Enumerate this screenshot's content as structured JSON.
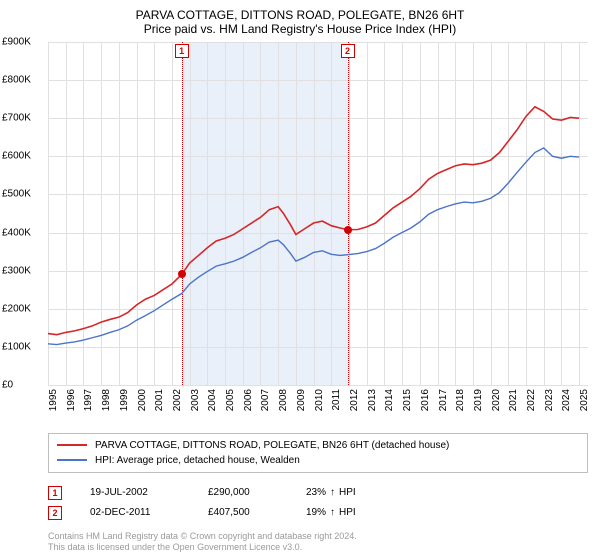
{
  "chart": {
    "title": "PARVA COTTAGE, DITTONS ROAD, POLEGATE, BN26 6HT",
    "subtitle": "Price paid vs. HM Land Registry's House Price Index (HPI)",
    "type": "line",
    "background_color": "#ffffff",
    "grid_color": "#e0e0e0",
    "shade_color": "#eaf0fa",
    "axis_font_size": 10,
    "title_font_size": 12,
    "x": {
      "min": 1995,
      "max": 2025.5,
      "ticks": [
        1995,
        1996,
        1997,
        1998,
        1999,
        2000,
        2001,
        2002,
        2003,
        2004,
        2005,
        2006,
        2007,
        2008,
        2009,
        2010,
        2011,
        2012,
        2013,
        2014,
        2015,
        2016,
        2017,
        2018,
        2019,
        2020,
        2021,
        2022,
        2023,
        2024,
        2025
      ],
      "tick_labels": [
        "1995",
        "1996",
        "1997",
        "1998",
        "1999",
        "2000",
        "2001",
        "2002",
        "2003",
        "2004",
        "2005",
        "2006",
        "2007",
        "2008",
        "2009",
        "2010",
        "2011",
        "2012",
        "2013",
        "2014",
        "2015",
        "2016",
        "2017",
        "2018",
        "2019",
        "2020",
        "2021",
        "2022",
        "2023",
        "2024",
        "2025"
      ]
    },
    "y": {
      "min": 0,
      "max": 900000,
      "ticks": [
        0,
        100000,
        200000,
        300000,
        400000,
        500000,
        600000,
        700000,
        800000,
        900000
      ],
      "tick_labels": [
        "£0",
        "£100K",
        "£200K",
        "£300K",
        "£400K",
        "£500K",
        "£600K",
        "£700K",
        "£800K",
        "£900K"
      ]
    },
    "series": [
      {
        "name": "PARVA COTTAGE, DITTONS ROAD, POLEGATE, BN26 6HT (detached house)",
        "color": "#d62728",
        "line_width": 1.6,
        "data": [
          [
            1995.0,
            135000
          ],
          [
            1995.5,
            132000
          ],
          [
            1996.0,
            138000
          ],
          [
            1996.5,
            142000
          ],
          [
            1997.0,
            148000
          ],
          [
            1997.5,
            155000
          ],
          [
            1998.0,
            165000
          ],
          [
            1998.5,
            172000
          ],
          [
            1999.0,
            178000
          ],
          [
            1999.5,
            190000
          ],
          [
            2000.0,
            210000
          ],
          [
            2000.5,
            225000
          ],
          [
            2001.0,
            235000
          ],
          [
            2001.5,
            250000
          ],
          [
            2002.0,
            265000
          ],
          [
            2002.55,
            290000
          ],
          [
            2003.0,
            320000
          ],
          [
            2003.5,
            340000
          ],
          [
            2004.0,
            360000
          ],
          [
            2004.5,
            378000
          ],
          [
            2005.0,
            385000
          ],
          [
            2005.5,
            395000
          ],
          [
            2006.0,
            410000
          ],
          [
            2006.5,
            425000
          ],
          [
            2007.0,
            440000
          ],
          [
            2007.5,
            460000
          ],
          [
            2008.0,
            468000
          ],
          [
            2008.3,
            450000
          ],
          [
            2008.7,
            420000
          ],
          [
            2009.0,
            395000
          ],
          [
            2009.5,
            410000
          ],
          [
            2010.0,
            425000
          ],
          [
            2010.5,
            430000
          ],
          [
            2011.0,
            418000
          ],
          [
            2011.5,
            412000
          ],
          [
            2011.92,
            407500
          ],
          [
            2012.5,
            408000
          ],
          [
            2013.0,
            415000
          ],
          [
            2013.5,
            425000
          ],
          [
            2014.0,
            445000
          ],
          [
            2014.5,
            465000
          ],
          [
            2015.0,
            480000
          ],
          [
            2015.5,
            495000
          ],
          [
            2016.0,
            515000
          ],
          [
            2016.5,
            540000
          ],
          [
            2017.0,
            555000
          ],
          [
            2017.5,
            565000
          ],
          [
            2018.0,
            575000
          ],
          [
            2018.5,
            580000
          ],
          [
            2019.0,
            578000
          ],
          [
            2019.5,
            582000
          ],
          [
            2020.0,
            590000
          ],
          [
            2020.5,
            610000
          ],
          [
            2021.0,
            640000
          ],
          [
            2021.5,
            670000
          ],
          [
            2022.0,
            705000
          ],
          [
            2022.5,
            730000
          ],
          [
            2023.0,
            718000
          ],
          [
            2023.5,
            698000
          ],
          [
            2024.0,
            695000
          ],
          [
            2024.5,
            702000
          ],
          [
            2025.0,
            700000
          ]
        ]
      },
      {
        "name": "HPI: Average price, detached house, Wealden",
        "color": "#4a74c9",
        "line_width": 1.4,
        "data": [
          [
            1995.0,
            108000
          ],
          [
            1995.5,
            106000
          ],
          [
            1996.0,
            110000
          ],
          [
            1996.5,
            113000
          ],
          [
            1997.0,
            118000
          ],
          [
            1997.5,
            124000
          ],
          [
            1998.0,
            130000
          ],
          [
            1998.5,
            138000
          ],
          [
            1999.0,
            145000
          ],
          [
            1999.5,
            155000
          ],
          [
            2000.0,
            170000
          ],
          [
            2000.5,
            182000
          ],
          [
            2001.0,
            195000
          ],
          [
            2001.5,
            210000
          ],
          [
            2002.0,
            225000
          ],
          [
            2002.55,
            240000
          ],
          [
            2003.0,
            265000
          ],
          [
            2003.5,
            283000
          ],
          [
            2004.0,
            298000
          ],
          [
            2004.5,
            312000
          ],
          [
            2005.0,
            318000
          ],
          [
            2005.5,
            325000
          ],
          [
            2006.0,
            335000
          ],
          [
            2006.5,
            348000
          ],
          [
            2007.0,
            360000
          ],
          [
            2007.5,
            375000
          ],
          [
            2008.0,
            380000
          ],
          [
            2008.3,
            368000
          ],
          [
            2008.7,
            345000
          ],
          [
            2009.0,
            325000
          ],
          [
            2009.5,
            335000
          ],
          [
            2010.0,
            348000
          ],
          [
            2010.5,
            352000
          ],
          [
            2011.0,
            343000
          ],
          [
            2011.5,
            340000
          ],
          [
            2011.92,
            342000
          ],
          [
            2012.5,
            345000
          ],
          [
            2013.0,
            350000
          ],
          [
            2013.5,
            358000
          ],
          [
            2014.0,
            372000
          ],
          [
            2014.5,
            388000
          ],
          [
            2015.0,
            400000
          ],
          [
            2015.5,
            412000
          ],
          [
            2016.0,
            428000
          ],
          [
            2016.5,
            448000
          ],
          [
            2017.0,
            460000
          ],
          [
            2017.5,
            468000
          ],
          [
            2018.0,
            475000
          ],
          [
            2018.5,
            480000
          ],
          [
            2019.0,
            478000
          ],
          [
            2019.5,
            482000
          ],
          [
            2020.0,
            490000
          ],
          [
            2020.5,
            505000
          ],
          [
            2021.0,
            530000
          ],
          [
            2021.5,
            558000
          ],
          [
            2022.0,
            585000
          ],
          [
            2022.5,
            610000
          ],
          [
            2023.0,
            622000
          ],
          [
            2023.5,
            600000
          ],
          [
            2024.0,
            595000
          ],
          [
            2024.5,
            600000
          ],
          [
            2025.0,
            598000
          ]
        ]
      }
    ],
    "shade_region": {
      "from": 2002.55,
      "to": 2011.92
    },
    "markers": [
      {
        "idx": "1",
        "x": 2002.55,
        "y": 290000
      },
      {
        "idx": "2",
        "x": 2011.92,
        "y": 407500
      }
    ]
  },
  "sales": [
    {
      "idx": "1",
      "date": "19-JUL-2002",
      "price": "£290,000",
      "hpi_pct": "23%",
      "hpi_dir": "↑",
      "hpi_label": "HPI"
    },
    {
      "idx": "2",
      "date": "02-DEC-2011",
      "price": "£407,500",
      "hpi_pct": "19%",
      "hpi_dir": "↑",
      "hpi_label": "HPI"
    }
  ],
  "footer": {
    "line1": "Contains HM Land Registry data © Crown copyright and database right 2024.",
    "line2": "This data is licensed under the Open Government Licence v3.0."
  }
}
